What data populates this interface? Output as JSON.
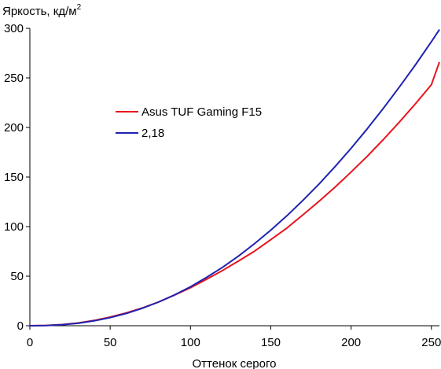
{
  "chart_data": {
    "type": "line",
    "title": "",
    "ylabel": "Яркость, кд/м",
    "ylabel_sup": "2",
    "xlabel": "Оттенок серого",
    "xlim": [
      0,
      255
    ],
    "ylim": [
      0,
      300
    ],
    "x_ticks": [
      0,
      50,
      100,
      150,
      200,
      250
    ],
    "y_ticks": [
      0,
      50,
      100,
      150,
      200,
      250,
      300
    ],
    "grid": false,
    "legend_position": "upper-left-center",
    "series": [
      {
        "name": "Asus TUF Gaming F15",
        "color": "#e8141c",
        "x": [
          0,
          10,
          20,
          30,
          40,
          50,
          60,
          70,
          80,
          90,
          100,
          110,
          120,
          130,
          140,
          150,
          160,
          170,
          180,
          190,
          200,
          210,
          220,
          230,
          240,
          250,
          255
        ],
        "y": [
          0,
          0.3,
          1.2,
          2.8,
          5.3,
          8.7,
          12.9,
          17.9,
          23.9,
          30.9,
          38.3,
          46.8,
          55.8,
          65.4,
          75.3,
          86.8,
          98.5,
          111.8,
          125.5,
          139.8,
          155.0,
          170.9,
          187.7,
          205.3,
          223.8,
          243.2,
          266
        ]
      },
      {
        "name": "2,18",
        "color": "#1f23b0",
        "x": [
          0,
          10,
          20,
          30,
          40,
          50,
          60,
          70,
          80,
          90,
          100,
          110,
          120,
          130,
          140,
          150,
          160,
          170,
          180,
          190,
          200,
          210,
          220,
          230,
          240,
          250,
          255
        ],
        "y": [
          0,
          0.23,
          1.0,
          2.5,
          4.9,
          8.2,
          12.4,
          17.6,
          23.8,
          31.0,
          39.3,
          48.7,
          59.0,
          70.4,
          82.9,
          96.4,
          110.9,
          126.4,
          142.9,
          160.5,
          179.0,
          198.6,
          219.1,
          240.6,
          263.1,
          286.6,
          298.7
        ]
      }
    ]
  }
}
